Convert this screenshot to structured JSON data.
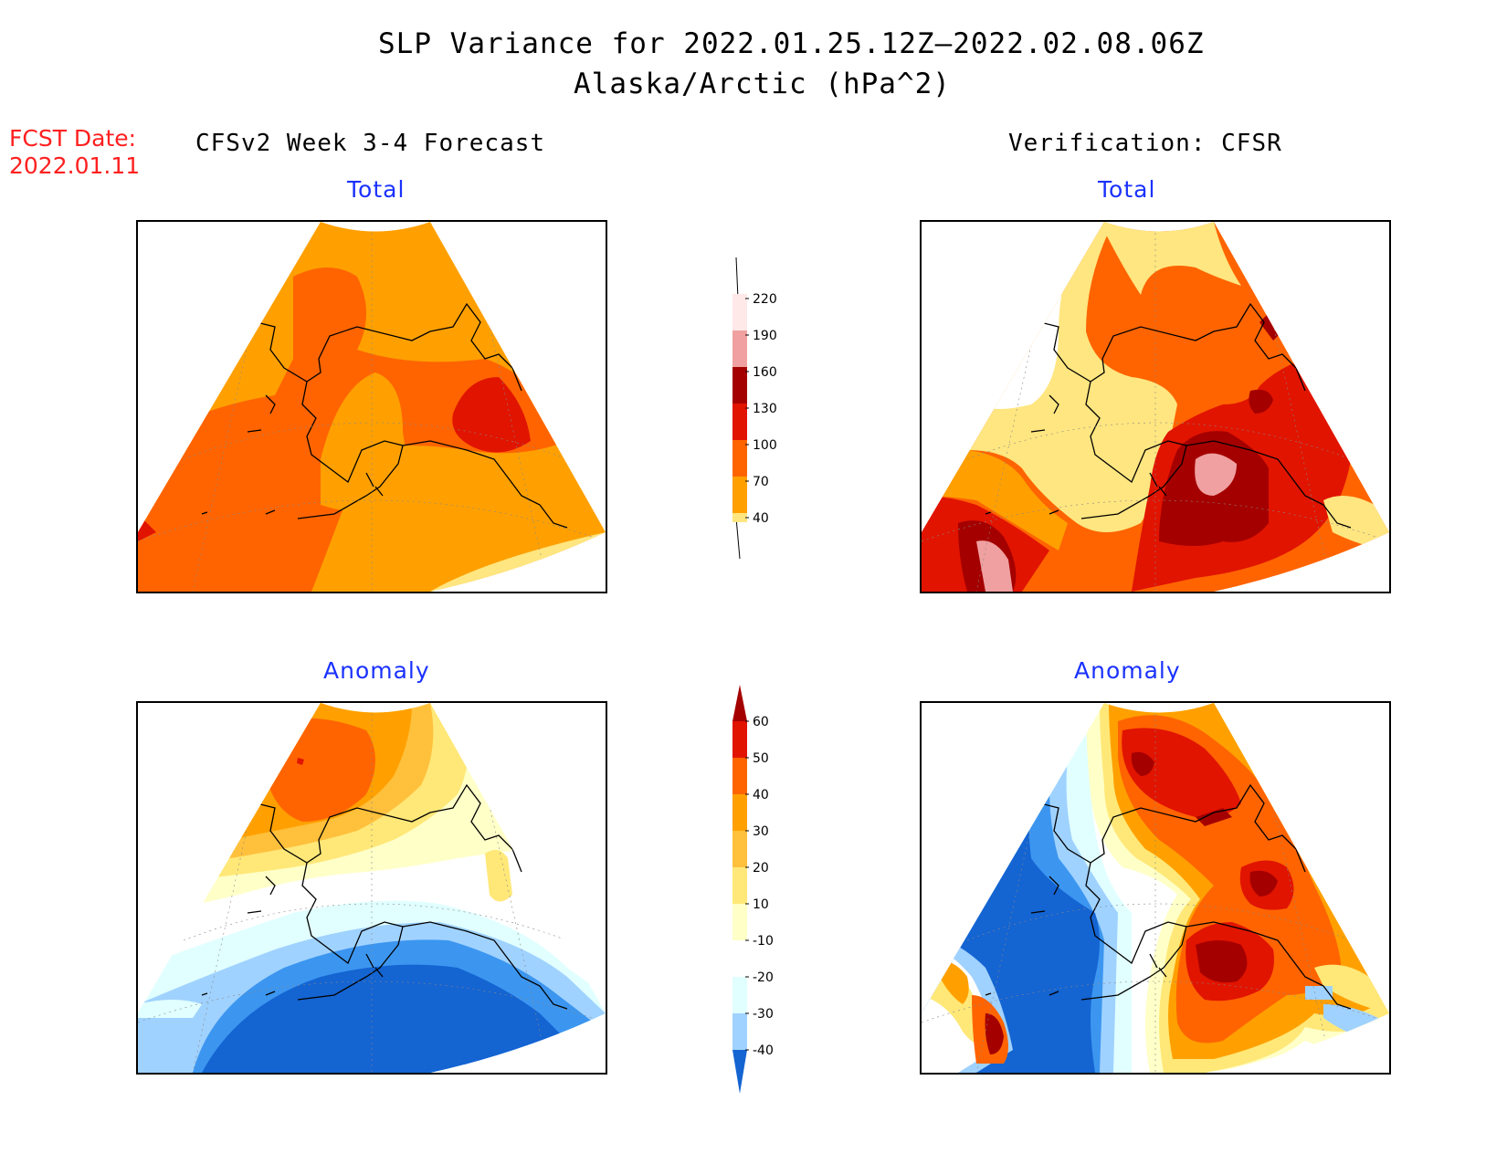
{
  "header": {
    "title": "SLP Variance for 2022.01.25.12Z—2022.02.08.06Z",
    "subtitle": "Alaska/Arctic (hPa^2)",
    "fcst_label": "FCST Date:",
    "fcst_date": "2022.01.11",
    "left_heading": "CFSv2 Week 3-4 Forecast",
    "right_heading": "Verification: CFSR"
  },
  "panels": {
    "forecast_total_title": "Total",
    "verif_total_title": "Total",
    "forecast_anom_title": "Anomaly",
    "verif_anom_title": "Anomaly"
  },
  "colors": {
    "c40": "#ffe680",
    "c70": "#ffa000",
    "c100": "#ff6400",
    "c130": "#e11400",
    "c160": "#a50000",
    "c190": "#f0a0a0",
    "c220": "#ffe8e8",
    "a_m40": "#1464d2",
    "a_m30": "#3c96f0",
    "a_m20": "#a0d2ff",
    "a_m10": "#e1ffff",
    "a_p10": "#ffffc8",
    "a_p20": "#ffe878",
    "a_p30": "#ffc03c",
    "a_p40": "#ffa000",
    "a_p50": "#ff6400",
    "a_p60": "#e11400",
    "a_p70": "#a50000"
  },
  "colorbar_total": {
    "labels": [
      "40",
      "70",
      "100",
      "130",
      "160",
      "190",
      "220"
    ]
  },
  "colorbar_anom": {
    "labels": [
      "-40",
      "-30",
      "-20",
      "-10",
      "10",
      "20",
      "30",
      "40",
      "50",
      "60"
    ]
  }
}
